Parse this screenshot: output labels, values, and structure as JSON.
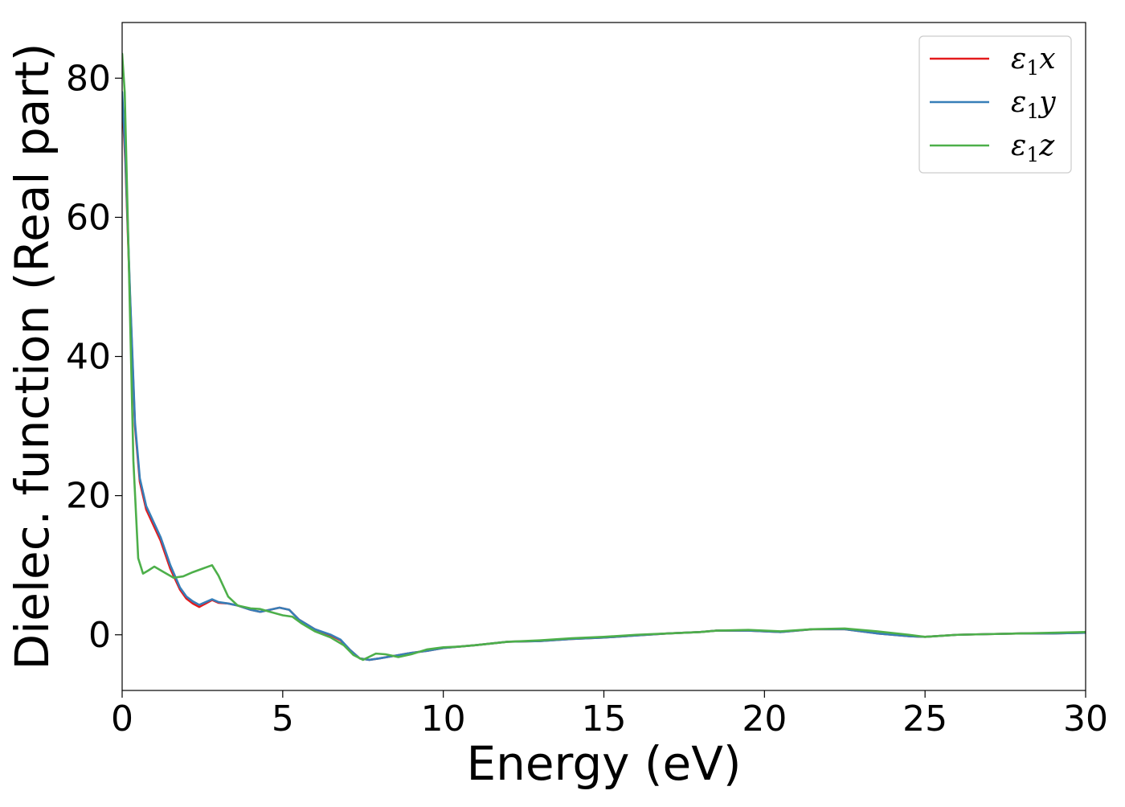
{
  "chart_data": {
    "type": "line",
    "title": "",
    "xlabel": "Energy (eV)",
    "ylabel": "Dielec. function (Real part)",
    "xlim": [
      0,
      30
    ],
    "ylim": [
      -8,
      88
    ],
    "xticks": [
      0,
      5,
      10,
      15,
      20,
      25,
      30
    ],
    "yticks": [
      0,
      20,
      40,
      60,
      80
    ],
    "xtick_labels": [
      "0",
      "5",
      "10",
      "15",
      "20",
      "25",
      "30"
    ],
    "ytick_labels": [
      "0",
      "20",
      "40",
      "60",
      "80"
    ],
    "grid": false,
    "legend_position": "top-right",
    "series": [
      {
        "name": "ε1x",
        "legend_base": "ε",
        "legend_sub": "1",
        "legend_suffix": "x",
        "color": "#e41a1c",
        "points": [
          [
            0.0,
            77
          ],
          [
            0.1,
            68
          ],
          [
            0.25,
            48
          ],
          [
            0.4,
            30
          ],
          [
            0.55,
            22
          ],
          [
            0.75,
            18
          ],
          [
            1.0,
            15.5
          ],
          [
            1.2,
            13.5
          ],
          [
            1.5,
            9.5
          ],
          [
            1.8,
            6.5
          ],
          [
            2.0,
            5.2
          ],
          [
            2.2,
            4.5
          ],
          [
            2.4,
            4.0
          ],
          [
            2.6,
            4.5
          ],
          [
            2.8,
            5.0
          ],
          [
            3.0,
            4.6
          ],
          [
            3.3,
            4.5
          ],
          [
            3.6,
            4.2
          ],
          [
            4.0,
            3.6
          ],
          [
            4.3,
            3.3
          ],
          [
            4.6,
            3.6
          ],
          [
            4.9,
            3.9
          ],
          [
            5.2,
            3.6
          ],
          [
            5.5,
            2.2
          ],
          [
            6.0,
            0.8
          ],
          [
            6.5,
            -0.1
          ],
          [
            6.8,
            -0.8
          ],
          [
            7.1,
            -2.2
          ],
          [
            7.4,
            -3.4
          ],
          [
            7.7,
            -3.6
          ],
          [
            8.0,
            -3.4
          ],
          [
            8.5,
            -3.0
          ],
          [
            9.0,
            -2.6
          ],
          [
            9.5,
            -2.3
          ],
          [
            10.0,
            -1.9
          ],
          [
            10.5,
            -1.7
          ],
          [
            11.0,
            -1.5
          ],
          [
            12.0,
            -1.0
          ],
          [
            13.0,
            -0.9
          ],
          [
            14.0,
            -0.6
          ],
          [
            15.0,
            -0.4
          ],
          [
            16.0,
            -0.1
          ],
          [
            17.0,
            0.2
          ],
          [
            18.0,
            0.4
          ],
          [
            18.5,
            0.6
          ],
          [
            19.5,
            0.6
          ],
          [
            20.5,
            0.4
          ],
          [
            21.5,
            0.8
          ],
          [
            22.5,
            0.8
          ],
          [
            23.5,
            0.2
          ],
          [
            24.5,
            -0.2
          ],
          [
            25.0,
            -0.3
          ],
          [
            26.0,
            0.0
          ],
          [
            27.0,
            0.1
          ],
          [
            28.0,
            0.2
          ],
          [
            29.0,
            0.2
          ],
          [
            30.0,
            0.3
          ]
        ]
      },
      {
        "name": "ε1y",
        "legend_base": "ε",
        "legend_sub": "1",
        "legend_suffix": "y",
        "color": "#377eb8",
        "points": [
          [
            0.0,
            78
          ],
          [
            0.1,
            69
          ],
          [
            0.25,
            48.5
          ],
          [
            0.4,
            30.5
          ],
          [
            0.55,
            22.5
          ],
          [
            0.75,
            18.5
          ],
          [
            1.0,
            16
          ],
          [
            1.2,
            14
          ],
          [
            1.5,
            10
          ],
          [
            1.8,
            6.8
          ],
          [
            2.0,
            5.5
          ],
          [
            2.2,
            4.8
          ],
          [
            2.4,
            4.3
          ],
          [
            2.6,
            4.7
          ],
          [
            2.8,
            5.1
          ],
          [
            3.0,
            4.7
          ],
          [
            3.3,
            4.5
          ],
          [
            3.6,
            4.2
          ],
          [
            4.0,
            3.6
          ],
          [
            4.3,
            3.3
          ],
          [
            4.6,
            3.6
          ],
          [
            4.9,
            3.9
          ],
          [
            5.2,
            3.6
          ],
          [
            5.5,
            2.2
          ],
          [
            6.0,
            0.8
          ],
          [
            6.5,
            0.0
          ],
          [
            6.8,
            -0.7
          ],
          [
            7.1,
            -2.2
          ],
          [
            7.4,
            -3.4
          ],
          [
            7.7,
            -3.6
          ],
          [
            8.0,
            -3.4
          ],
          [
            8.5,
            -3.0
          ],
          [
            9.0,
            -2.6
          ],
          [
            9.5,
            -2.3
          ],
          [
            10.0,
            -1.9
          ],
          [
            10.5,
            -1.7
          ],
          [
            11.0,
            -1.5
          ],
          [
            12.0,
            -1.0
          ],
          [
            13.0,
            -0.9
          ],
          [
            14.0,
            -0.6
          ],
          [
            15.0,
            -0.4
          ],
          [
            16.0,
            -0.1
          ],
          [
            17.0,
            0.2
          ],
          [
            18.0,
            0.4
          ],
          [
            18.5,
            0.6
          ],
          [
            19.5,
            0.6
          ],
          [
            20.5,
            0.4
          ],
          [
            21.5,
            0.8
          ],
          [
            22.5,
            0.8
          ],
          [
            23.5,
            0.2
          ],
          [
            24.5,
            -0.2
          ],
          [
            25.0,
            -0.3
          ],
          [
            26.0,
            0.0
          ],
          [
            27.0,
            0.1
          ],
          [
            28.0,
            0.2
          ],
          [
            29.0,
            0.2
          ],
          [
            30.0,
            0.3
          ]
        ]
      },
      {
        "name": "ε1z",
        "legend_base": "ε",
        "legend_sub": "1",
        "legend_suffix": "z",
        "color": "#4daf4a",
        "points": [
          [
            0.0,
            83.5
          ],
          [
            0.08,
            78
          ],
          [
            0.2,
            55
          ],
          [
            0.35,
            25
          ],
          [
            0.5,
            11
          ],
          [
            0.65,
            8.8
          ],
          [
            0.8,
            9.2
          ],
          [
            1.0,
            9.8
          ],
          [
            1.3,
            9.0
          ],
          [
            1.6,
            8.2
          ],
          [
            1.9,
            8.4
          ],
          [
            2.2,
            9.0
          ],
          [
            2.5,
            9.5
          ],
          [
            2.8,
            10.0
          ],
          [
            3.0,
            8.5
          ],
          [
            3.3,
            5.5
          ],
          [
            3.6,
            4.2
          ],
          [
            4.0,
            3.8
          ],
          [
            4.3,
            3.7
          ],
          [
            4.6,
            3.3
          ],
          [
            5.0,
            2.8
          ],
          [
            5.3,
            2.6
          ],
          [
            5.6,
            1.6
          ],
          [
            6.0,
            0.5
          ],
          [
            6.5,
            -0.4
          ],
          [
            6.9,
            -1.5
          ],
          [
            7.2,
            -2.9
          ],
          [
            7.5,
            -3.6
          ],
          [
            7.9,
            -2.7
          ],
          [
            8.2,
            -2.8
          ],
          [
            8.6,
            -3.2
          ],
          [
            9.0,
            -2.8
          ],
          [
            9.5,
            -2.1
          ],
          [
            10.0,
            -1.8
          ],
          [
            10.5,
            -1.7
          ],
          [
            11.0,
            -1.5
          ],
          [
            12.0,
            -1.0
          ],
          [
            13.0,
            -0.8
          ],
          [
            14.0,
            -0.5
          ],
          [
            15.0,
            -0.3
          ],
          [
            16.0,
            0.0
          ],
          [
            17.0,
            0.2
          ],
          [
            18.0,
            0.4
          ],
          [
            18.5,
            0.6
          ],
          [
            19.5,
            0.7
          ],
          [
            20.5,
            0.5
          ],
          [
            21.5,
            0.8
          ],
          [
            22.5,
            0.9
          ],
          [
            23.5,
            0.5
          ],
          [
            24.5,
            0.0
          ],
          [
            25.0,
            -0.3
          ],
          [
            26.0,
            0.0
          ],
          [
            27.0,
            0.1
          ],
          [
            28.0,
            0.2
          ],
          [
            29.0,
            0.3
          ],
          [
            30.0,
            0.4
          ]
        ]
      }
    ]
  }
}
